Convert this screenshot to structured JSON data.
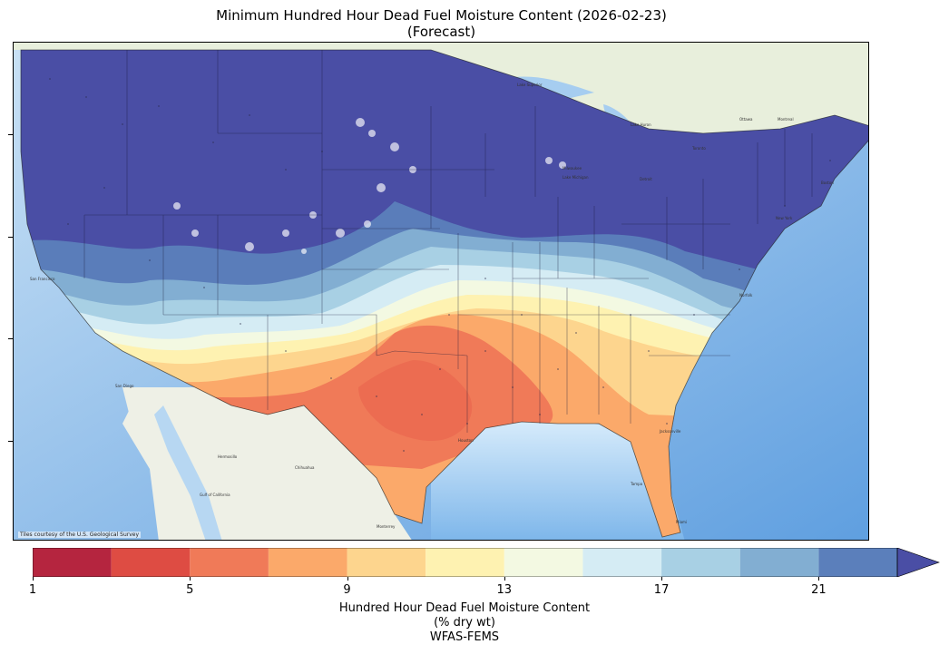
{
  "title_line1": "Minimum Hundred Hour Dead Fuel Moisture Content (2026-02-23)",
  "title_line2": "(Forecast)",
  "credit": "Tiles courtesy of the U.S. Geological Survey",
  "colorbar": {
    "tick_labels": [
      "1",
      "5",
      "9",
      "13",
      "17",
      "21"
    ],
    "tick_values": [
      1,
      5,
      9,
      13,
      17,
      21
    ],
    "bins": [
      1,
      3,
      5,
      7,
      9,
      11,
      13,
      15,
      17,
      19,
      21,
      23
    ],
    "colors": [
      "#b5253f",
      "#de4c43",
      "#f07a58",
      "#fba96a",
      "#fdd58e",
      "#fef2b1",
      "#f3f9e2",
      "#d5ecf4",
      "#a8d0e4",
      "#82aed2",
      "#5b7fbb"
    ],
    "extend_color": "#4a4ea5",
    "extend": "max",
    "label_line1": "Hundred Hour Dead Fuel Moisture Content",
    "label_line2": "(% dry wt)",
    "label_line3": "WFAS-FEMS"
  },
  "places": {
    "ottawa": "Ottawa",
    "montreal": "Montreal",
    "toronto": "Toronto",
    "milwaukee": "Milwaukee",
    "detroit": "Detroit",
    "boston": "Boston",
    "new_york": "New York",
    "san_francisco": "San Francisco",
    "san_diego": "San Diego",
    "hermosillo": "Hermosillo",
    "chihuahua": "Chihuahua",
    "monterrey": "Monterrey",
    "houston": "Houston",
    "jacksonville": "Jacksonville",
    "tampa": "Tampa",
    "miami": "Miami",
    "norfolk": "Norfolk",
    "lake_superior": "Lake Superior",
    "lake_huron": "Lake Huron",
    "lake_michigan": "Lake Michigan",
    "gulf_of_california": "Gulf of California"
  }
}
